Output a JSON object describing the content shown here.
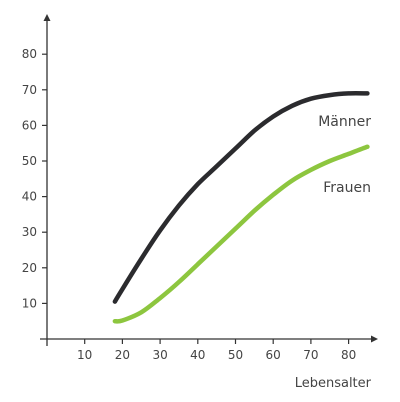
{
  "chart_data": {
    "type": "line",
    "xlabel": "Lebensalter",
    "ylabel": "",
    "xlim": [
      0,
      87
    ],
    "ylim": [
      0,
      87
    ],
    "x_ticks": [
      10,
      20,
      30,
      40,
      50,
      60,
      70,
      80
    ],
    "y_ticks": [
      10,
      20,
      30,
      40,
      50,
      60,
      70,
      80
    ],
    "grid": false,
    "series": [
      {
        "name": "Männer",
        "color": "#2b2b2e",
        "x": [
          18,
          20,
          25,
          30,
          35,
          40,
          45,
          50,
          55,
          60,
          65,
          70,
          75,
          80,
          85
        ],
        "y": [
          10.5,
          14,
          22.5,
          30.5,
          37.5,
          43.5,
          48.5,
          53.5,
          58.5,
          62.5,
          65.5,
          67.5,
          68.5,
          69,
          69
        ]
      },
      {
        "name": "Frauen",
        "color": "#8dc63f",
        "x": [
          18,
          20,
          25,
          30,
          35,
          40,
          45,
          50,
          55,
          60,
          65,
          70,
          75,
          80,
          85
        ],
        "y": [
          5,
          5.2,
          7.5,
          11.5,
          16,
          21,
          26,
          31,
          36,
          40.5,
          44.5,
          47.5,
          50,
          52,
          54
        ]
      }
    ]
  }
}
